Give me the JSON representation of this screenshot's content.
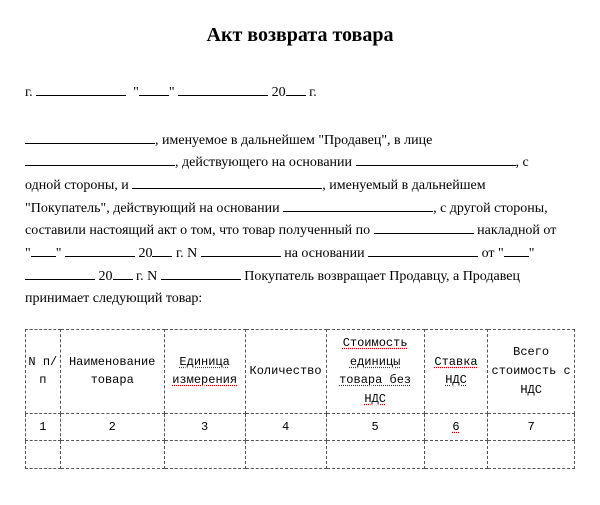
{
  "title": "Акт возврата товара",
  "prelude": {
    "g": "г.",
    "yr_prefix": "20",
    "g2": "г."
  },
  "body": {
    "p1": ", именуемое в дальнейшем \"Продавец\", в лице",
    "p2": ", действующего на основании",
    "p2_tail": ", с",
    "p3a": "одной стороны, и",
    "p3b": ", именуемый в дальнейшем",
    "p4a": "\"Покупатель\", действующий на основании",
    "p4b": ", с другой стороны,",
    "p5a": "составили настоящий акт о том, что товар полученный по",
    "p5b": "накладной от",
    "p6a": "\"",
    "p6b": "\"",
    "p6c": "20",
    "p6d": "г. N",
    "p6e": "на основании",
    "p6f": "от \"",
    "p6g": "\"",
    "p7a": "20",
    "p7b": "г. N",
    "p7c": "Покупатель возвращает Продавцу, а Продавец",
    "p8": "принимает следующий товар:"
  },
  "table": {
    "widths": [
      6,
      18,
      14,
      14,
      17,
      11,
      15
    ],
    "headers": [
      "N п/п",
      "Наименование товара",
      "Единица измерения",
      "Количество",
      "Стоимость единицы товара без НДС",
      "Ставка НДС",
      "Всего стоимость с НДС"
    ],
    "index_row": [
      "1",
      "2",
      "3",
      "4",
      "5",
      "6",
      "7"
    ],
    "header_squiggle_cols": [
      2,
      4,
      5
    ],
    "index_squiggle_cols": [
      5
    ]
  }
}
